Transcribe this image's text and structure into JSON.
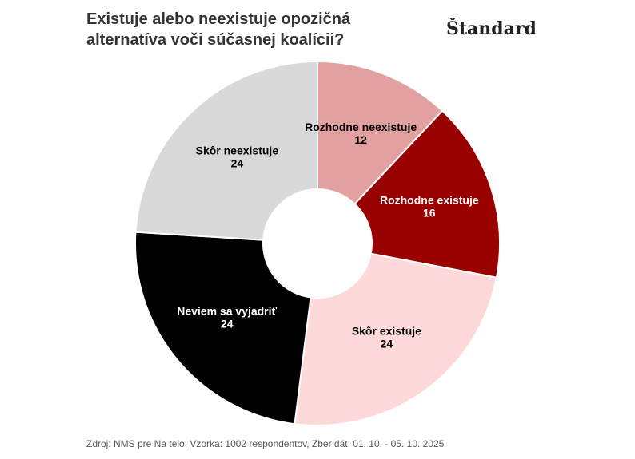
{
  "chart_data": {
    "type": "pie",
    "title": "Existuje alebo neexistuje opozičná alternatíva voči súčasnej koalícii?",
    "categories": [
      "Rozhodne neexistuje",
      "Rozhodne existuje",
      "Skôr existuje",
      "Neviem sa vyjadriť",
      "Skôr neexistuje"
    ],
    "values": [
      12,
      16,
      24,
      24,
      24
    ],
    "colors": [
      "#e3a0a0",
      "#990000",
      "#fdd9d9",
      "#000000",
      "#d9d9d9"
    ],
    "source": "Zdroj: NMS pre Na telo, Vzorka: 1002 respondentov, Zber dát: 01. 10. - 05. 10. 2025"
  },
  "logo": "Štandard"
}
